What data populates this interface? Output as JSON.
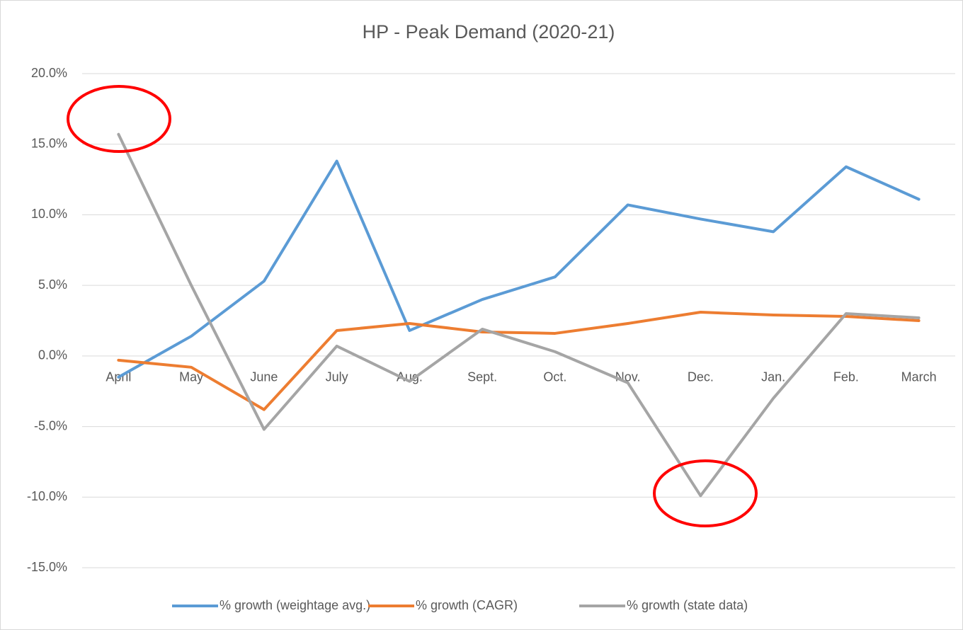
{
  "chart_data": {
    "type": "line",
    "title": "HP - Peak Demand (2020-21)",
    "categories": [
      "April",
      "May",
      "June",
      "July",
      "Aug.",
      "Sept.",
      "Oct.",
      "Nov.",
      "Dec.",
      "Jan.",
      "Feb.",
      "March"
    ],
    "series": [
      {
        "name": "% growth (weightage avg.)",
        "color": "#5b9bd5",
        "values": [
          -1.5,
          1.4,
          5.3,
          13.8,
          1.8,
          4.0,
          5.6,
          10.7,
          9.7,
          8.8,
          13.4,
          11.1
        ]
      },
      {
        "name": "% growth (CAGR)",
        "color": "#ed7d31",
        "values": [
          -0.3,
          -0.8,
          -3.8,
          1.8,
          2.3,
          1.7,
          1.6,
          2.3,
          3.1,
          2.9,
          2.8,
          2.5
        ]
      },
      {
        "name": "% growth (state data)",
        "color": "#a5a5a5",
        "values": [
          15.7,
          5.0,
          -5.2,
          0.7,
          -1.8,
          1.9,
          0.3,
          -1.9,
          -9.9,
          -3.0,
          3.0,
          2.7
        ]
      }
    ],
    "ylim": [
      -15,
      20
    ],
    "yticks": [
      {
        "value": -15,
        "label": "-15.0%"
      },
      {
        "value": -10,
        "label": "-10.0%"
      },
      {
        "value": -5,
        "label": "-5.0%"
      },
      {
        "value": 0,
        "label": "0.0%"
      },
      {
        "value": 5,
        "label": "5.0%"
      },
      {
        "value": 10,
        "label": "10.0%"
      },
      {
        "value": 15,
        "label": "15.0%"
      },
      {
        "value": 20,
        "label": "20.0%"
      }
    ],
    "grid": true,
    "legend": "bottom"
  }
}
